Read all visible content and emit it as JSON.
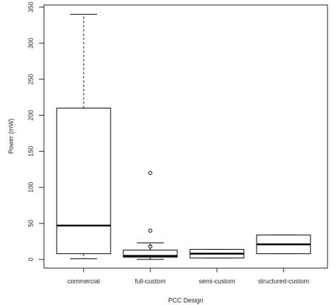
{
  "chart_data": {
    "type": "box",
    "x_label": "PCC Design",
    "y_label": "Power (mW)",
    "categories": [
      "commercial",
      "full-custom",
      "semi-custom",
      "structured-custom"
    ],
    "boxes": [
      {
        "min": 1,
        "q1": 8,
        "median": 47,
        "q3": 210,
        "max": 340,
        "outliers": []
      },
      {
        "min": 0,
        "q1": 3,
        "median": 5,
        "q3": 13,
        "max": 23,
        "outliers": [
          120,
          40,
          18
        ]
      },
      {
        "min": 2,
        "q1": 2,
        "median": 8,
        "q3": 14,
        "max": 14,
        "outliers": []
      },
      {
        "min": 8,
        "q1": 8,
        "median": 21,
        "q3": 34,
        "max": 34,
        "outliers": []
      }
    ],
    "color": "#000000",
    "ylim": [
      -12,
      353
    ],
    "yticks": [
      0,
      50,
      100,
      150,
      200,
      250,
      300,
      350
    ]
  }
}
